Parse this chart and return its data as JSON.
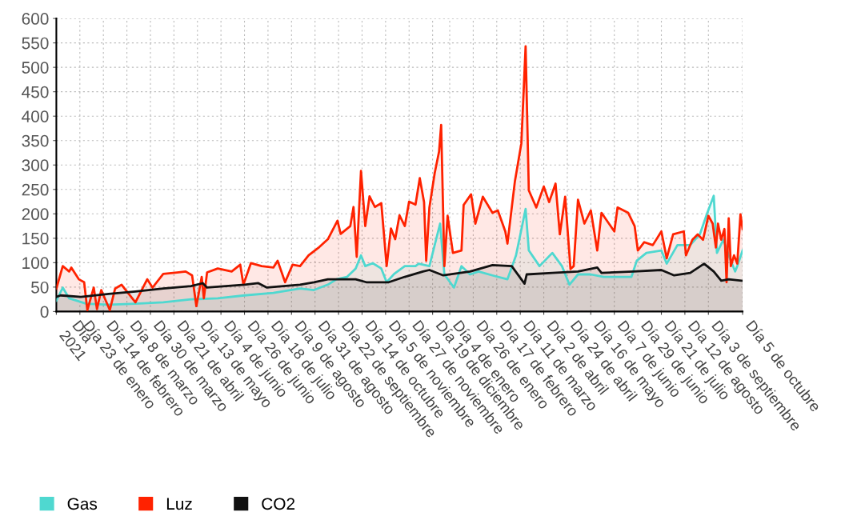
{
  "chart_data": {
    "type": "area",
    "xlim": [
      "2021-01-01",
      "2022-10-05"
    ],
    "xticks": [
      {
        "value": "2021-01-01",
        "label": "Día\n2021"
      },
      {
        "value": "2021-01-23",
        "label": "Día 23 de enero"
      },
      {
        "value": "2021-02-14",
        "label": "Día 14 de febrero"
      },
      {
        "value": "2021-03-08",
        "label": "Día 8 de marzo"
      },
      {
        "value": "2021-03-30",
        "label": "Día 30 de marzo"
      },
      {
        "value": "2021-04-21",
        "label": "Día 21 de abril"
      },
      {
        "value": "2021-05-13",
        "label": "Día 13 de mayo"
      },
      {
        "value": "2021-06-04",
        "label": "Día 4 de junio"
      },
      {
        "value": "2021-06-26",
        "label": "Día 26 de junio"
      },
      {
        "value": "2021-07-18",
        "label": "Día 18 de julio"
      },
      {
        "value": "2021-08-09",
        "label": "Día 9 de agosto"
      },
      {
        "value": "2021-08-31",
        "label": "Día 31 de agosto"
      },
      {
        "value": "2021-09-22",
        "label": "Día 22 de septiembre"
      },
      {
        "value": "2021-10-14",
        "label": "Día 14 de octubre"
      },
      {
        "value": "2021-11-05",
        "label": "Día 5 de noviembre"
      },
      {
        "value": "2021-11-27",
        "label": "Día 27 de noviembre"
      },
      {
        "value": "2021-12-19",
        "label": "Día 19 de diciembre"
      },
      {
        "value": "2022-01-04",
        "label": "Día 4 de enero"
      },
      {
        "value": "2022-01-26",
        "label": "Día 26 de enero"
      },
      {
        "value": "2022-02-17",
        "label": "Día 17 de febrero"
      },
      {
        "value": "2022-03-11",
        "label": "Día 11 de marzo"
      },
      {
        "value": "2022-04-02",
        "label": "Día 2 de abril"
      },
      {
        "value": "2022-04-24",
        "label": "Día 24 de abril"
      },
      {
        "value": "2022-05-16",
        "label": "Día 16 de mayo"
      },
      {
        "value": "2022-06-07",
        "label": "Día 7 de junio"
      },
      {
        "value": "2022-06-29",
        "label": "Día 29 de junio"
      },
      {
        "value": "2022-07-21",
        "label": "Día 21 de julio"
      },
      {
        "value": "2022-08-12",
        "label": "Día 12 de agosto"
      },
      {
        "value": "2022-09-03",
        "label": "Día 3 de septiembre"
      },
      {
        "value": "2022-10-05",
        "label": "Día 5 de octubre"
      }
    ],
    "ylim": [
      0,
      600
    ],
    "yticks": [
      0,
      50,
      100,
      150,
      200,
      250,
      300,
      350,
      400,
      450,
      500,
      550,
      600
    ],
    "grid": true,
    "legend": "bottom left",
    "marker": "none",
    "line_style": "solid",
    "series": [
      {
        "name": "Gas",
        "color": "#4fd8d0",
        "x": [
          "2021-01-01",
          "2021-01-07",
          "2021-01-13",
          "2021-01-29",
          "2021-02-19",
          "2021-03-16",
          "2021-04-11",
          "2021-05-07",
          "2021-06-01",
          "2021-06-26",
          "2021-07-23",
          "2021-08-17",
          "2021-08-30",
          "2021-09-12",
          "2021-09-20",
          "2021-09-30",
          "2021-10-08",
          "2021-10-13",
          "2021-10-17",
          "2021-10-24",
          "2021-11-01",
          "2021-11-06",
          "2021-11-13",
          "2021-11-23",
          "2021-12-03",
          "2021-12-06",
          "2021-12-16",
          "2021-12-26",
          "2021-12-30",
          "2022-01-08",
          "2022-01-15",
          "2022-01-23",
          "2022-01-31",
          "2022-02-13",
          "2022-02-27",
          "2022-03-07",
          "2022-03-16",
          "2022-03-19",
          "2022-03-29",
          "2022-04-10",
          "2022-04-19",
          "2022-04-26",
          "2022-05-04",
          "2022-05-16",
          "2022-05-28",
          "2022-06-15",
          "2022-06-23",
          "2022-06-28",
          "2022-07-07",
          "2022-07-21",
          "2022-07-26",
          "2022-08-05",
          "2022-08-17",
          "2022-08-26",
          "2022-09-02",
          "2022-09-08",
          "2022-09-11",
          "2022-09-17",
          "2022-09-22",
          "2022-09-28",
          "2022-09-30",
          "2022-10-05"
        ],
        "values": [
          22,
          49,
          27,
          16,
          14,
          16,
          19,
          25,
          27,
          33,
          38,
          47,
          44,
          55,
          66,
          71,
          88,
          115,
          93,
          99,
          88,
          60,
          77,
          93,
          93,
          98,
          93,
          180,
          76,
          49,
          93,
          76,
          82,
          74,
          66,
          115,
          210,
          125,
          93,
          120,
          93,
          55,
          76,
          76,
          71,
          71,
          71,
          104,
          120,
          125,
          98,
          136,
          136,
          158,
          202,
          237,
          120,
          147,
          115,
          82,
          93,
          125
        ]
      },
      {
        "name": "Luz",
        "color": "#ff2200",
        "x": [
          "2021-01-01",
          "2021-01-07",
          "2021-01-13",
          "2021-01-15",
          "2021-01-22",
          "2021-01-27",
          "2021-01-30",
          "2021-02-05",
          "2021-02-08",
          "2021-02-12",
          "2021-02-20",
          "2021-02-25",
          "2021-03-03",
          "2021-03-09",
          "2021-03-16",
          "2021-03-27",
          "2021-04-01",
          "2021-04-11",
          "2021-04-24",
          "2021-05-02",
          "2021-05-08",
          "2021-05-12",
          "2021-05-17",
          "2021-05-19",
          "2021-05-22",
          "2021-06-01",
          "2021-06-14",
          "2021-06-22",
          "2021-06-25",
          "2021-07-02",
          "2021-07-12",
          "2021-07-23",
          "2021-07-27",
          "2021-08-03",
          "2021-08-10",
          "2021-08-17",
          "2021-08-25",
          "2021-09-04",
          "2021-09-12",
          "2021-09-21",
          "2021-09-24",
          "2021-10-03",
          "2021-10-06",
          "2021-10-09",
          "2021-10-13",
          "2021-10-17",
          "2021-10-21",
          "2021-10-26",
          "2021-11-01",
          "2021-11-06",
          "2021-11-10",
          "2021-11-14",
          "2021-11-18",
          "2021-11-23",
          "2021-11-27",
          "2021-12-03",
          "2021-12-07",
          "2021-12-11",
          "2021-12-13",
          "2021-12-16",
          "2021-12-21",
          "2021-12-25",
          "2021-12-27",
          "2021-12-30",
          "2022-01-02",
          "2022-01-07",
          "2022-01-15",
          "2022-01-17",
          "2022-01-24",
          "2022-01-28",
          "2022-02-04",
          "2022-02-13",
          "2022-02-18",
          "2022-02-25",
          "2022-02-27",
          "2022-03-06",
          "2022-03-12",
          "2022-03-16",
          "2022-03-19",
          "2022-03-26",
          "2022-04-02",
          "2022-04-07",
          "2022-04-13",
          "2022-04-17",
          "2022-04-22",
          "2022-04-27",
          "2022-04-30",
          "2022-05-04",
          "2022-05-10",
          "2022-05-16",
          "2022-05-22",
          "2022-05-26",
          "2022-06-07",
          "2022-06-10",
          "2022-06-20",
          "2022-06-26",
          "2022-06-29",
          "2022-07-05",
          "2022-07-13",
          "2022-07-21",
          "2022-07-26",
          "2022-08-01",
          "2022-08-11",
          "2022-08-13",
          "2022-08-19",
          "2022-08-24",
          "2022-08-29",
          "2022-09-03",
          "2022-09-07",
          "2022-09-10",
          "2022-09-12",
          "2022-09-15",
          "2022-09-18",
          "2022-09-20",
          "2022-09-22",
          "2022-09-24",
          "2022-09-27",
          "2022-09-30",
          "2022-10-03",
          "2022-10-05"
        ],
        "values": [
          47,
          93,
          82,
          90,
          66,
          60,
          3,
          49,
          5,
          44,
          3,
          47,
          55,
          38,
          19,
          66,
          49,
          77,
          80,
          82,
          74,
          11,
          71,
          27,
          80,
          88,
          82,
          96,
          55,
          99,
          93,
          90,
          104,
          60,
          96,
          93,
          115,
          132,
          148,
          186,
          159,
          175,
          214,
          112,
          288,
          175,
          236,
          214,
          222,
          93,
          170,
          148,
          197,
          175,
          225,
          219,
          273,
          224,
          104,
          213,
          284,
          327,
          382,
          93,
          196,
          120,
          125,
          218,
          240,
          180,
          235,
          202,
          207,
          164,
          139,
          267,
          344,
          543,
          248,
          213,
          256,
          224,
          262,
          158,
          235,
          87,
          93,
          229,
          180,
          207,
          125,
          202,
          164,
          213,
          202,
          175,
          125,
          142,
          136,
          164,
          109,
          158,
          164,
          115,
          147,
          158,
          147,
          196,
          180,
          131,
          180,
          147,
          169,
          60,
          191,
          93,
          115,
          98,
          199,
          169
        ]
      },
      {
        "name": "CO2",
        "color": "#111111",
        "x": [
          "2021-01-01",
          "2021-01-05",
          "2021-01-24",
          "2021-02-19",
          "2021-03-16",
          "2021-04-11",
          "2021-05-07",
          "2021-05-18",
          "2021-05-22",
          "2021-06-26",
          "2021-07-09",
          "2021-07-17",
          "2021-08-17",
          "2021-08-30",
          "2021-09-12",
          "2021-10-08",
          "2021-10-18",
          "2021-11-08",
          "2021-11-23",
          "2021-12-10",
          "2021-12-16",
          "2021-12-29",
          "2022-01-23",
          "2022-02-13",
          "2022-03-03",
          "2022-03-15",
          "2022-03-17",
          "2022-04-10",
          "2022-05-04",
          "2022-05-22",
          "2022-05-26",
          "2022-06-25",
          "2022-07-21",
          "2022-08-02",
          "2022-08-17",
          "2022-08-30",
          "2022-09-08",
          "2022-09-15",
          "2022-09-22",
          "2022-10-05"
        ],
        "values": [
          30,
          33,
          30,
          36,
          41,
          47,
          52,
          58,
          49,
          55,
          58,
          49,
          55,
          60,
          66,
          66,
          60,
          60,
          71,
          82,
          85,
          74,
          82,
          95,
          93,
          57,
          76,
          79,
          82,
          90,
          79,
          82,
          85,
          74,
          79,
          98,
          82,
          63,
          66,
          63
        ]
      }
    ]
  }
}
